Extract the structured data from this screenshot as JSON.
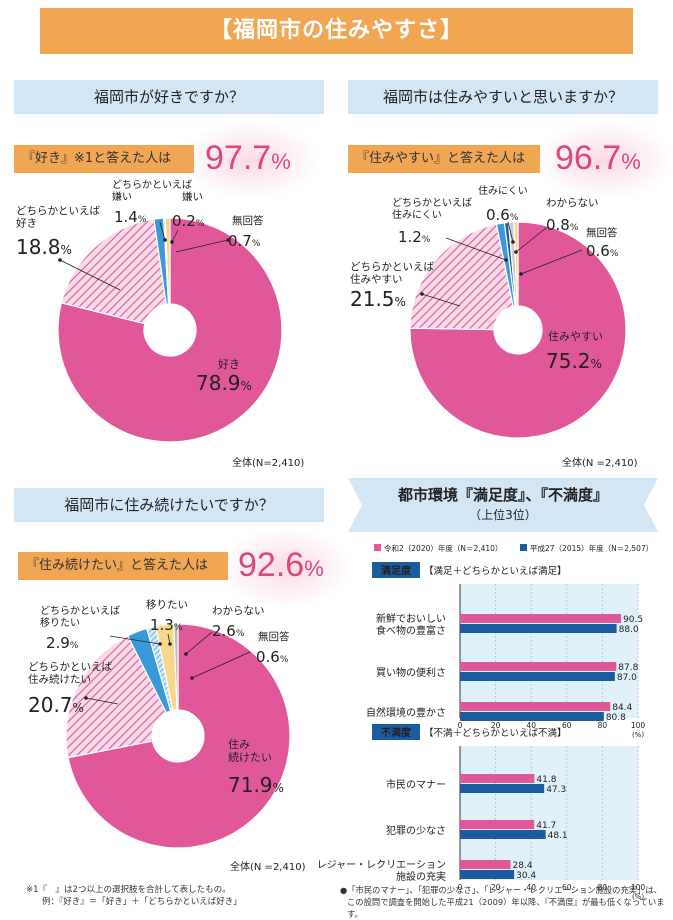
{
  "main_title": "【福岡市の住みやすさ】",
  "panels": [
    {
      "question": "福岡市が好きですか？",
      "answer_label": "『好き』※1と答えた人は",
      "answer_value": "97.7",
      "answer_unit": "%",
      "note": "全体(N=2,410)"
    },
    {
      "question": "福岡市は住みやすいと思いますか？",
      "answer_label": "『住みやすい』と答えた人は",
      "answer_value": "96.7",
      "answer_unit": "%",
      "note": "全体(N =2,410)"
    },
    {
      "question": "福岡市に住み続けたいですか？",
      "answer_label": "『住み続けたい』と答えた人は",
      "answer_value": "92.6",
      "answer_unit": "%",
      "note": "全体(N =2,410)"
    }
  ],
  "city": {
    "title": "都市環境『満足度』、『不満度』",
    "subtitle": "（上位3位）",
    "footnote_lines": [
      "●「市民のマナー」、「犯罪の少なさ」、「レジャー・レクリエーション施設の充実」は、",
      "この設問で調査を開始した平成21（2009）年以降、『不満度』が最も低くなっています。"
    ]
  },
  "footnote_lines": [
    "※1『　』は2つ以上の選択肢を合計して表したもの。",
    "例：『好き』＝「好き」＋「どちらかといえば好き」"
  ],
  "colors": {
    "pink": "#e0589a",
    "light_pink": "#f3c3d8",
    "blue": "#3a9ad9",
    "dark_blue": "#1b5c9e",
    "yellow": "#f6d88a",
    "orange": "#f0a653",
    "banner_blue": "#d3e6f6",
    "red_text": "#e0457b"
  },
  "chart_data": [
    {
      "type": "pie",
      "slices": [
        {
          "label": "好き",
          "value": 78.9,
          "value_label": "78.9",
          "color": "#e0589a",
          "pattern": "solid"
        },
        {
          "label": "どちらかといえば好き",
          "value": 18.8,
          "value_label": "18.8",
          "color": "#e0589a",
          "pattern": "hatch"
        },
        {
          "label": "どちらかといえば嫌い",
          "value": 1.4,
          "value_label": "1.4",
          "color": "#3a9ad9",
          "pattern": "solid"
        },
        {
          "label": "嫌い",
          "value": 0.2,
          "value_label": "0.2",
          "color": "#1b5c9e",
          "pattern": "solid"
        },
        {
          "label": "無回答",
          "value": 0.7,
          "value_label": "0.7",
          "color": "#f6d88a",
          "pattern": "solid"
        }
      ]
    },
    {
      "type": "pie",
      "slices": [
        {
          "label": "住みやすい",
          "value": 75.2,
          "value_label": "75.2",
          "color": "#e0589a",
          "pattern": "solid"
        },
        {
          "label": "どちらかといえば住みやすい",
          "value": 21.5,
          "value_label": "21.5",
          "color": "#e0589a",
          "pattern": "hatch"
        },
        {
          "label": "どちらかといえば住みにくい",
          "value": 1.2,
          "value_label": "1.2",
          "color": "#3a9ad9",
          "pattern": "solid"
        },
        {
          "label": "住みにくい",
          "value": 0.6,
          "value_label": "0.6",
          "color": "#1b5c9e",
          "pattern": "solid"
        },
        {
          "label": "わからない",
          "value": 0.8,
          "value_label": "0.8",
          "color": "#cccccc",
          "pattern": "solid"
        },
        {
          "label": "無回答",
          "value": 0.6,
          "value_label": "0.6",
          "color": "#f6d88a",
          "pattern": "solid"
        }
      ]
    },
    {
      "type": "pie",
      "slices": [
        {
          "label": "住み続けたい",
          "value": 71.9,
          "value_label": "71.9",
          "color": "#e0589a",
          "pattern": "solid"
        },
        {
          "label": "どちらかといえば住み続けたい",
          "value": 20.7,
          "value_label": "20.7",
          "color": "#e0589a",
          "pattern": "hatch"
        },
        {
          "label": "どちらかといえば移りたい",
          "value": 2.9,
          "value_label": "2.9",
          "color": "#3a9ad9",
          "pattern": "solid"
        },
        {
          "label": "移りたい",
          "value": 1.3,
          "value_label": "1.3",
          "color": "#1b5c9e",
          "pattern": "hatch"
        },
        {
          "label": "わからない",
          "value": 2.6,
          "value_label": "2.6",
          "color": "#f6d88a",
          "pattern": "solid"
        },
        {
          "label": "無回答",
          "value": 0.6,
          "value_label": "0.6",
          "color": "#bbbbbb",
          "pattern": "solid"
        }
      ]
    },
    {
      "type": "bar",
      "orientation": "horizontal",
      "title": "満足度",
      "subtitle": "【満足＋どちらかといえば満足】",
      "categories": [
        "新鮮でおいしい食べ物の豊富さ",
        "買い物の便利さ",
        "自然環境の豊かさ"
      ],
      "series": [
        {
          "name": "令和2（2020）年度（N＝2,410）",
          "color": "#e0589a",
          "values": [
            90.5,
            87.8,
            84.4
          ]
        },
        {
          "name": "平成27（2015）年度（N＝2,507）",
          "color": "#1b5c9e",
          "values": [
            88.0,
            87.0,
            80.8
          ]
        }
      ],
      "xlim": [
        0,
        100
      ],
      "ticks": [
        0,
        20,
        40,
        60,
        80,
        100
      ],
      "unit": "(%)"
    },
    {
      "type": "bar",
      "orientation": "horizontal",
      "title": "不満度",
      "subtitle": "【不満＋どちらかといえば不満】",
      "categories": [
        "市民のマナー",
        "犯罪の少なさ",
        "レジャー・レクリエーション施設の充実"
      ],
      "series": [
        {
          "name": "令和2（2020）年度（N＝2,410）",
          "color": "#e0589a",
          "values": [
            41.8,
            41.7,
            28.4
          ]
        },
        {
          "name": "平成27（2015）年度（N＝2,507）",
          "color": "#1b5c9e",
          "values": [
            47.3,
            48.1,
            30.4
          ]
        }
      ],
      "xlim": [
        0,
        100
      ],
      "ticks": [
        0,
        20,
        40,
        60,
        80,
        100
      ],
      "unit": "(%)"
    }
  ]
}
